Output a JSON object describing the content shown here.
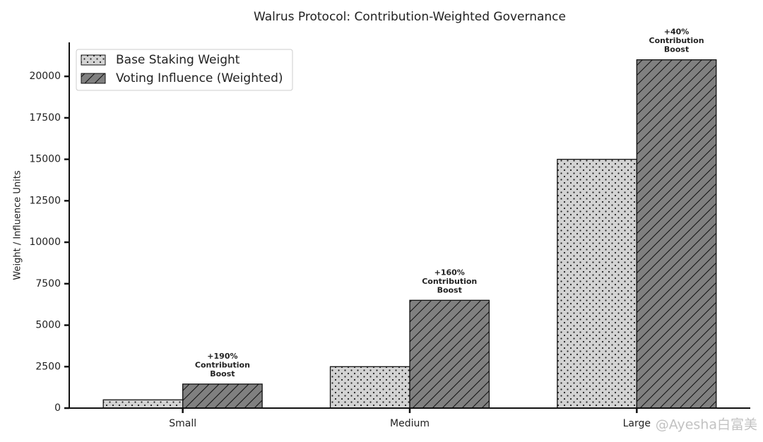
{
  "chart_data": {
    "type": "bar",
    "title": "Walrus Protocol: Contribution-Weighted Governance",
    "y_label": "Weight / Influence Units",
    "categories": [
      "Small",
      "Medium",
      "Large"
    ],
    "series": [
      {
        "name": "Base Staking Weight",
        "color": "#d3d3d3",
        "hatch": "dots",
        "values": [
          500,
          2500,
          15000
        ]
      },
      {
        "name": "Voting Influence (Weighted)",
        "color": "#808080",
        "hatch": "diagonal",
        "values": [
          1450,
          6500,
          21000
        ]
      }
    ],
    "annotations": [
      [
        "+190%",
        "Contribution",
        "Boost"
      ],
      [
        "+160%",
        "Contribution",
        "Boost"
      ],
      [
        "+40%",
        "Contribution",
        "Boost"
      ]
    ],
    "ylim": [
      0,
      22050
    ],
    "yticks": [
      0,
      2500,
      5000,
      7500,
      10000,
      12500,
      15000,
      17500,
      20000
    ],
    "grid": false,
    "legend": "upper-left",
    "watermark": "@Ayesha白富美"
  }
}
